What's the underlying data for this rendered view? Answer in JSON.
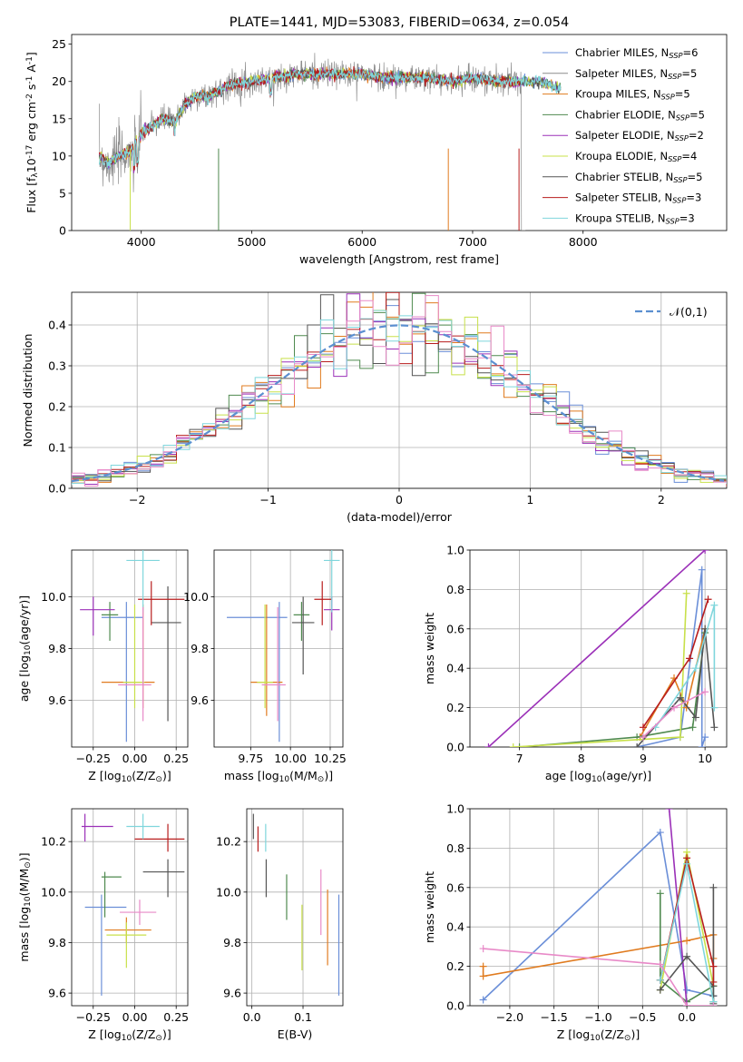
{
  "colors": [
    "#6b8fd8",
    "#8c8c8c",
    "#e07b1f",
    "#4f8a4f",
    "#9b30b8",
    "#c8e04a",
    "#555555",
    "#b81d1d",
    "#7fd6dc"
  ],
  "shade_colors": [
    "#6b8fd8",
    "#e07b1f",
    "#4f8a4f",
    "#9b30b8",
    "#c8e04a",
    "#555555",
    "#b81d1d",
    "#7fd6dc",
    "#e88ac8"
  ],
  "chart_data": [
    {
      "id": "spectrum",
      "type": "line",
      "title": "PLATE=1441, MJD=53083, FIBERID=0634, z=0.054",
      "xlabel": "wavelength [Angstrom, rest frame]",
      "ylabel": "Flux [f$_\\lambda$10$^{-17}$ erg cm$^{-2}$ s$^{-1}$ A$^{-1}$]",
      "xlim": [
        3370,
        9300
      ],
      "ylim": [
        0,
        26.3
      ],
      "xticks": [
        4000,
        5000,
        6000,
        7000,
        8000
      ],
      "xticklabels": [
        "4000",
        "5000",
        "6000",
        "7000",
        "8000"
      ],
      "yticks": [
        0,
        5,
        10,
        15,
        20,
        25
      ],
      "yticklabels": [
        "0",
        "5",
        "10",
        "15",
        "20",
        "25"
      ],
      "continuum": {
        "x": [
          3620,
          3700,
          3800,
          3900,
          4000,
          4100,
          4200,
          4300,
          4400,
          4500,
          4600,
          4800,
          5000,
          5200,
          5400,
          5600,
          5800,
          6000,
          6200,
          6400,
          6600,
          6800,
          7000,
          7200,
          7400,
          7600,
          7800
        ],
        "y": [
          10,
          9,
          10,
          10.5,
          13,
          14,
          15,
          14.5,
          17,
          18,
          18,
          19.5,
          20,
          20.5,
          21,
          21,
          21,
          21,
          20.5,
          20.5,
          20.5,
          20,
          20.5,
          20,
          20,
          20,
          19
        ]
      },
      "legend": [
        "Chabrier MILES, N$_{SSP}$=6",
        "Salpeter MILES, N$_{SSP}$=5",
        "Kroupa MILES, N$_{SSP}$=5",
        "Chabrier ELODIE, N$_{SSP}$=5",
        "Salpeter ELODIE, N$_{SSP}$=2",
        "Kroupa ELODIE, N$_{SSP}$=4",
        "Chabrier STELIB, N$_{SSP}$=5",
        "Salpeter STELIB, N$_{SSP}$=3",
        "Kroupa STELIB, N$_{SSP}$=3"
      ],
      "legend_loc": "right"
    },
    {
      "id": "residuals",
      "type": "histogram",
      "xlabel": "(data-model)/error",
      "ylabel": "Normed distribution",
      "xlim": [
        -2.5,
        2.5
      ],
      "ylim": [
        0,
        0.48
      ],
      "xticks": [
        -2,
        -1,
        0,
        1,
        2
      ],
      "xticklabels": [
        "−2",
        "−1",
        "0",
        "1",
        "2"
      ],
      "yticks": [
        0,
        0.1,
        0.2,
        0.3,
        0.4
      ],
      "yticklabels": [
        "0.0",
        "0.1",
        "0.2",
        "0.3",
        "0.4"
      ],
      "reference": {
        "label": "$\\mathcal{N}(0,1)$",
        "mean": 0,
        "sigma": 1
      },
      "bin_width": 0.1,
      "legend_loc": "upper right",
      "grid": true
    },
    {
      "id": "age-vs-Z",
      "type": "errorbar",
      "xlabel": "Z [log$_{10}$(Z/Z$_\\odot$)]",
      "ylabel": "age  [log$_{10}$(age/yr)]",
      "xlim": [
        -0.38,
        0.32
      ],
      "ylim": [
        9.42,
        10.18
      ],
      "xticks": [
        -0.25,
        0,
        0.25
      ],
      "xticklabels": [
        "−0.25",
        "0.00",
        "0.25"
      ],
      "yticks": [
        9.6,
        9.8,
        10.0
      ],
      "yticklabels": [
        "9.6",
        "9.8",
        "10.0"
      ],
      "grid": true,
      "points": [
        {
          "x": -0.05,
          "y": 9.92,
          "xerr": [
            0.15,
            0.1
          ],
          "yerr": [
            0.48,
            0.06
          ],
          "color": "#6b8fd8"
        },
        {
          "x": 0.05,
          "y": 9.67,
          "xerr": [
            0.25,
            0.07
          ],
          "yerr": [
            0.1,
            0.3
          ],
          "color": "#e07b1f"
        },
        {
          "x": -0.15,
          "y": 9.93,
          "xerr": [
            0.05,
            0.05
          ],
          "yerr": [
            0.1,
            0.05
          ],
          "color": "#4f8a4f"
        },
        {
          "x": -0.25,
          "y": 9.95,
          "xerr": [
            0.08,
            0.13
          ],
          "yerr": [
            0.1,
            0.05
          ],
          "color": "#9b30b8"
        },
        {
          "x": 0.0,
          "y": 9.67,
          "xerr": [
            0.07,
            0.06
          ],
          "yerr": [
            0.1,
            0.3
          ],
          "color": "#c8e04a"
        },
        {
          "x": 0.2,
          "y": 9.9,
          "xerr": [
            0.1,
            0.08
          ],
          "yerr": [
            0.38,
            0.14
          ],
          "color": "#555555"
        },
        {
          "x": 0.1,
          "y": 9.99,
          "xerr": [
            0.08,
            0.2
          ],
          "yerr": [
            0.1,
            0.07
          ],
          "color": "#b81d1d"
        },
        {
          "x": 0.05,
          "y": 10.14,
          "xerr": [
            0.1,
            0.1
          ],
          "yerr": [
            0.2,
            0.05
          ],
          "color": "#7fd6dc"
        },
        {
          "x": 0.05,
          "y": 9.66,
          "xerr": [
            0.15,
            0.05
          ],
          "yerr": [
            0.14,
            0.3
          ],
          "color": "#e88ac8"
        }
      ]
    },
    {
      "id": "age-vs-mass",
      "type": "errorbar",
      "xlabel": "mass [log$_{10}$(M/M$_\\odot$)]",
      "xlim": [
        9.52,
        10.33
      ],
      "ylim": [
        9.42,
        10.18
      ],
      "xticks": [
        9.75,
        10.0,
        10.25
      ],
      "xticklabels": [
        "9.75",
        "10.00",
        "10.25"
      ],
      "yticks": [
        9.6,
        9.8,
        10.0
      ],
      "yticklabels": [
        "9.6",
        "9.8",
        "10.0"
      ],
      "grid": true,
      "points": [
        {
          "x": 9.93,
          "y": 9.92,
          "xerr": [
            0.33,
            0.05
          ],
          "yerr": [
            0.48,
            0.06
          ],
          "color": "#6b8fd8"
        },
        {
          "x": 9.85,
          "y": 9.67,
          "xerr": [
            0.1,
            0.1
          ],
          "yerr": [
            0.13,
            0.3
          ],
          "color": "#e07b1f"
        },
        {
          "x": 10.07,
          "y": 9.93,
          "xerr": [
            0.05,
            0.05
          ],
          "yerr": [
            0.1,
            0.05
          ],
          "color": "#4f8a4f"
        },
        {
          "x": 10.26,
          "y": 9.95,
          "xerr": [
            0.05,
            0.05
          ],
          "yerr": [
            0.08,
            0.05
          ],
          "color": "#9b30b8"
        },
        {
          "x": 9.84,
          "y": 9.67,
          "xerr": [
            0.05,
            0.05
          ],
          "yerr": [
            0.1,
            0.3
          ],
          "color": "#c8e04a"
        },
        {
          "x": 10.08,
          "y": 9.9,
          "xerr": [
            0.07,
            0.07
          ],
          "yerr": [
            0.2,
            0.1
          ],
          "color": "#555555"
        },
        {
          "x": 10.2,
          "y": 9.99,
          "xerr": [
            0.05,
            0.06
          ],
          "yerr": [
            0.1,
            0.07
          ],
          "color": "#b81d1d"
        },
        {
          "x": 10.26,
          "y": 10.14,
          "xerr": [
            0.05,
            0.05
          ],
          "yerr": [
            0.2,
            0.05
          ],
          "color": "#7fd6dc"
        },
        {
          "x": 9.92,
          "y": 9.66,
          "xerr": [
            0.1,
            0.05
          ],
          "yerr": [
            0.14,
            0.3
          ],
          "color": "#e88ac8"
        }
      ]
    },
    {
      "id": "weight-vs-age",
      "type": "line",
      "xlabel": "age  [log$_{10}$(age/yr)]",
      "ylabel": "mass weight",
      "xlim": [
        6.2,
        10.35
      ],
      "ylim": [
        0,
        1
      ],
      "xticks": [
        7,
        8,
        9,
        10
      ],
      "xticklabels": [
        "7",
        "8",
        "9",
        "10"
      ],
      "yticks": [
        0,
        0.2,
        0.4,
        0.6,
        0.8,
        1.0
      ],
      "yticklabels": [
        "0.0",
        "0.2",
        "0.4",
        "0.6",
        "0.8",
        "1.0"
      ],
      "grid": true,
      "series": [
        {
          "color": "#6b8fd8",
          "x": [
            8.9,
            9.6,
            9.95,
            9.95,
            10.0
          ],
          "y": [
            0.0,
            0.05,
            0.9,
            0.0,
            0.05
          ]
        },
        {
          "color": "#e07b1f",
          "x": [
            8.95,
            9.5,
            9.7,
            10.0
          ],
          "y": [
            0.05,
            0.35,
            0.2,
            0.6
          ]
        },
        {
          "color": "#4f8a4f",
          "x": [
            7.0,
            8.9,
            9.8,
            10.0
          ],
          "y": [
            0.0,
            0.05,
            0.1,
            0.58
          ]
        },
        {
          "color": "#9b30b8",
          "x": [
            6.5,
            10.0
          ],
          "y": [
            0.0,
            1.0
          ]
        },
        {
          "color": "#c8e04a",
          "x": [
            6.9,
            9.6,
            9.7
          ],
          "y": [
            0.0,
            0.05,
            0.78
          ]
        },
        {
          "color": "#555555",
          "x": [
            8.9,
            9.6,
            9.85,
            10.0,
            10.15
          ],
          "y": [
            0.0,
            0.25,
            0.15,
            0.6,
            0.1
          ]
        },
        {
          "color": "#b81d1d",
          "x": [
            9.0,
            9.75,
            10.05
          ],
          "y": [
            0.1,
            0.45,
            0.75
          ]
        },
        {
          "color": "#7fd6dc",
          "x": [
            9.2,
            9.85,
            10.15,
            10.15
          ],
          "y": [
            0.1,
            0.4,
            0.72,
            0.2
          ]
        },
        {
          "color": "#e88ac8",
          "x": [
            9.0,
            9.5,
            10.0
          ],
          "y": [
            0.05,
            0.2,
            0.28
          ]
        }
      ]
    },
    {
      "id": "mass-vs-Z",
      "type": "errorbar",
      "xlabel": "Z [log$_{10}$(Z/Z$_\\odot$)]",
      "ylabel": "mass [log$_{10}$(M/M$_\\odot$)]",
      "xlim": [
        -0.38,
        0.32
      ],
      "ylim": [
        9.55,
        10.33
      ],
      "xticks": [
        -0.25,
        0,
        0.25
      ],
      "xticklabels": [
        "−0.25",
        "0.00",
        "0.25"
      ],
      "yticks": [
        9.6,
        9.8,
        10.0,
        10.2
      ],
      "yticklabels": [
        "9.6",
        "9.8",
        "10.0",
        "10.2"
      ],
      "grid": true,
      "points": [
        {
          "x": -0.2,
          "y": 9.94,
          "xerr": [
            0.1,
            0.15
          ],
          "yerr": [
            0.35,
            0.05
          ],
          "color": "#6b8fd8"
        },
        {
          "x": -0.05,
          "y": 9.85,
          "xerr": [
            0.13,
            0.15
          ],
          "yerr": [
            0.05,
            0.05
          ],
          "color": "#e07b1f"
        },
        {
          "x": -0.18,
          "y": 10.06,
          "xerr": [
            0.02,
            0.1
          ],
          "yerr": [
            0.16,
            0.02
          ],
          "color": "#4f8a4f"
        },
        {
          "x": -0.3,
          "y": 10.26,
          "xerr": [
            0.02,
            0.17
          ],
          "yerr": [
            0.06,
            0.05
          ],
          "color": "#9b30b8"
        },
        {
          "x": -0.05,
          "y": 9.83,
          "xerr": [
            0.12,
            0.12
          ],
          "yerr": [
            0.13,
            0.05
          ],
          "color": "#c8e04a"
        },
        {
          "x": 0.2,
          "y": 10.08,
          "xerr": [
            0.15,
            0.1
          ],
          "yerr": [
            0.1,
            0.05
          ],
          "color": "#555555"
        },
        {
          "x": 0.2,
          "y": 10.21,
          "xerr": [
            0.2,
            0.1
          ],
          "yerr": [
            0.05,
            0.06
          ],
          "color": "#b81d1d"
        },
        {
          "x": 0.05,
          "y": 10.26,
          "xerr": [
            0.1,
            0.1
          ],
          "yerr": [
            0.05,
            0.05
          ],
          "color": "#7fd6dc"
        },
        {
          "x": 0.03,
          "y": 9.92,
          "xerr": [
            0.12,
            0.1
          ],
          "yerr": [
            0.05,
            0.05
          ],
          "color": "#e88ac8"
        }
      ]
    },
    {
      "id": "mass-vs-ebv",
      "type": "errorbar",
      "xlabel": "E(B-V)",
      "xlim": [
        -0.01,
        0.178
      ],
      "ylim": [
        9.55,
        10.33
      ],
      "xticks": [
        0.0,
        0.1
      ],
      "xticklabels": [
        "0.0",
        "0.1"
      ],
      "yticks": [
        9.6,
        9.8,
        10.0,
        10.2
      ],
      "yticklabels": [
        "9.6",
        "9.8",
        "10.0",
        "10.2"
      ],
      "grid": true,
      "points": [
        {
          "x": 0.003,
          "y": 10.26,
          "yerr": [
            0.05,
            0.05
          ],
          "color": "#555555"
        },
        {
          "x": 0.012,
          "y": 10.21,
          "yerr": [
            0.05,
            0.05
          ],
          "color": "#b81d1d"
        },
        {
          "x": 0.027,
          "y": 10.21,
          "yerr": [
            0.05,
            0.06
          ],
          "color": "#7fd6dc"
        },
        {
          "x": 0.028,
          "y": 10.08,
          "yerr": [
            0.1,
            0.05
          ],
          "color": "#555555"
        },
        {
          "x": 0.068,
          "y": 9.98,
          "yerr": [
            0.09,
            0.09
          ],
          "color": "#4f8a4f"
        },
        {
          "x": 0.098,
          "y": 9.82,
          "yerr": [
            0.13,
            0.13
          ],
          "color": "#c8e04a"
        },
        {
          "x": 0.135,
          "y": 9.96,
          "yerr": [
            0.13,
            0.13
          ],
          "color": "#e88ac8"
        },
        {
          "x": 0.148,
          "y": 9.86,
          "yerr": [
            0.15,
            0.15
          ],
          "color": "#e07b1f"
        },
        {
          "x": 0.17,
          "y": 9.79,
          "yerr": [
            0.2,
            0.2
          ],
          "color": "#6b8fd8"
        }
      ]
    },
    {
      "id": "weight-vs-Z",
      "type": "line",
      "xlabel": "Z [log$_{10}$(Z/Z$_\\odot$)]",
      "ylabel": "mass weight",
      "xlim": [
        -2.45,
        0.45
      ],
      "ylim": [
        0,
        1
      ],
      "xticks": [
        -2.0,
        -1.5,
        -1.0,
        -0.5,
        0.0
      ],
      "xticklabels": [
        "−2.0",
        "−1.5",
        "−1.0",
        "−0.5",
        "0.0"
      ],
      "yticks": [
        0,
        0.2,
        0.4,
        0.6,
        0.8,
        1.0
      ],
      "yticklabels": [
        "0.0",
        "0.2",
        "0.4",
        "0.6",
        "0.8",
        "1.0"
      ],
      "grid": true,
      "series": [
        {
          "color": "#6b8fd8",
          "x": [
            -2.3,
            -0.3,
            0.0,
            0.3
          ],
          "y": [
            0.03,
            0.88,
            0.08,
            0.05
          ]
        },
        {
          "color": "#e07b1f",
          "x": [
            -2.3,
            -2.3,
            0.0,
            0.3,
            0.3
          ],
          "y": [
            0.2,
            0.15,
            0.33,
            0.36,
            0.24
          ]
        },
        {
          "color": "#4f8a4f",
          "x": [
            -0.3,
            -0.3,
            0.0,
            0.3,
            0.3
          ],
          "y": [
            0.57,
            0.13,
            0.02,
            0.1,
            0.02
          ]
        },
        {
          "color": "#9b30b8",
          "x": [
            -0.2,
            0.0
          ],
          "y": [
            1.0,
            0.0
          ]
        },
        {
          "color": "#c8e04a",
          "x": [
            -0.3,
            0.0,
            0.3
          ],
          "y": [
            0.08,
            0.78,
            0.1
          ]
        },
        {
          "color": "#555555",
          "x": [
            -0.3,
            0.0,
            0.3,
            0.3,
            0.3,
            0.3
          ],
          "y": [
            0.08,
            0.25,
            0.1,
            0.6,
            0.05,
            0.01
          ]
        },
        {
          "color": "#b81d1d",
          "x": [
            -0.3,
            0.0,
            0.3,
            0.3
          ],
          "y": [
            0.13,
            0.75,
            0.2,
            0.12
          ]
        },
        {
          "color": "#7fd6dc",
          "x": [
            -0.3,
            0.0,
            0.3
          ],
          "y": [
            0.13,
            0.72,
            0.02
          ]
        },
        {
          "color": "#e88ac8",
          "x": [
            -2.3,
            -0.3,
            0.0,
            0.3
          ],
          "y": [
            0.29,
            0.21,
            0.0,
            0.0
          ]
        }
      ]
    }
  ]
}
